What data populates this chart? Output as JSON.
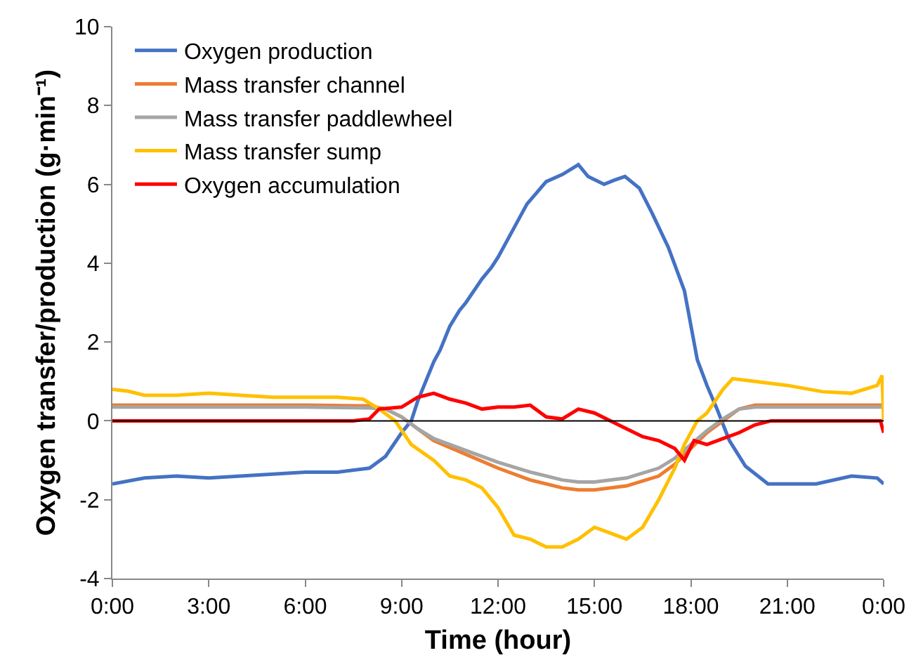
{
  "chart_data": {
    "type": "line",
    "xlabel": "Time (hour)",
    "ylabel": "Oxygen transfer/production (g·min⁻¹)",
    "xlim": [
      0,
      24
    ],
    "xticks": [
      {
        "value": 0,
        "label": "0:00"
      },
      {
        "value": 3,
        "label": "3:00"
      },
      {
        "value": 6,
        "label": "6:00"
      },
      {
        "value": 9,
        "label": "9:00"
      },
      {
        "value": 12,
        "label": "12:00"
      },
      {
        "value": 15,
        "label": "15:00"
      },
      {
        "value": 18,
        "label": "18:00"
      },
      {
        "value": 21,
        "label": "21:00"
      },
      {
        "value": 24,
        "label": "0:00"
      }
    ],
    "ylim": [
      -4,
      10
    ],
    "yticks": [
      -4,
      -2,
      0,
      2,
      4,
      6,
      8,
      10
    ],
    "grid": false,
    "legend": "top left",
    "marker": "none",
    "line_style": "solid",
    "ref_lines": [
      {
        "axis": "y",
        "value": 0,
        "color": "#000000"
      }
    ],
    "series": [
      {
        "name": "Oxygen production",
        "color": "#4472c4",
        "x": [
          0,
          1,
          2,
          3,
          4,
          5,
          6,
          7,
          8,
          8.5,
          9,
          9.3,
          9.5,
          10,
          10.2,
          10.5,
          10.8,
          11,
          11.5,
          11.8,
          12,
          12.5,
          12.9,
          13.5,
          14,
          14.5,
          14.8,
          15.3,
          15.6,
          15.95,
          16.4,
          16.8,
          17.3,
          17.8,
          18.2,
          18.5,
          18.8,
          19.2,
          19.7,
          20.4,
          21,
          21.9,
          23,
          23.8,
          24
        ],
        "values": [
          -1.6,
          -1.45,
          -1.4,
          -1.45,
          -1.4,
          -1.35,
          -1.3,
          -1.3,
          -1.2,
          -0.9,
          -0.3,
          0,
          0.5,
          1.5,
          1.8,
          2.4,
          2.8,
          3.0,
          3.6,
          3.9,
          4.15,
          4.9,
          5.5,
          6.07,
          6.25,
          6.5,
          6.2,
          6.0,
          6.1,
          6.2,
          5.9,
          5.26,
          4.4,
          3.3,
          1.55,
          0.9,
          0.33,
          -0.5,
          -1.15,
          -1.6,
          -1.6,
          -1.6,
          -1.4,
          -1.45,
          -1.6
        ]
      },
      {
        "name": "Mass transfer channel",
        "color": "#ed7d31",
        "x": [
          0,
          2,
          4,
          6,
          8,
          8.5,
          9,
          9.5,
          10,
          11,
          12,
          13,
          14,
          14.5,
          15,
          16,
          17,
          17.5,
          18,
          18.5,
          19,
          19.5,
          20,
          22,
          24
        ],
        "values": [
          0.4,
          0.4,
          0.4,
          0.4,
          0.38,
          0.3,
          0.1,
          -0.2,
          -0.5,
          -0.85,
          -1.2,
          -1.5,
          -1.7,
          -1.75,
          -1.75,
          -1.65,
          -1.4,
          -1.1,
          -0.7,
          -0.3,
          0.0,
          0.3,
          0.4,
          0.4,
          0.4
        ]
      },
      {
        "name": "Mass transfer paddlewheel",
        "color": "#a5a5a5",
        "x": [
          0,
          2,
          4,
          6,
          8,
          8.5,
          9,
          9.5,
          10,
          11,
          12,
          13,
          14,
          14.5,
          15,
          16,
          17,
          17.5,
          18,
          18.5,
          19,
          19.5,
          20,
          22,
          24
        ],
        "values": [
          0.35,
          0.35,
          0.35,
          0.35,
          0.33,
          0.3,
          0.1,
          -0.2,
          -0.45,
          -0.75,
          -1.05,
          -1.3,
          -1.5,
          -1.55,
          -1.55,
          -1.45,
          -1.2,
          -0.95,
          -0.6,
          -0.25,
          0.05,
          0.3,
          0.35,
          0.35,
          0.35
        ]
      },
      {
        "name": "Mass transfer sump",
        "color": "#ffc000",
        "x": [
          0,
          0.5,
          1,
          2,
          3,
          4,
          5,
          6,
          7,
          7.8,
          8.3,
          8.8,
          9.3,
          10,
          10.5,
          11,
          11.5,
          12,
          12.5,
          13,
          13.5,
          14,
          14.5,
          15,
          15.5,
          16,
          16.5,
          17,
          17.5,
          17.8,
          18.2,
          18.5,
          19,
          19.3,
          20,
          21,
          22.1,
          23,
          23.8,
          23.95,
          24
        ],
        "values": [
          0.8,
          0.75,
          0.65,
          0.65,
          0.7,
          0.65,
          0.6,
          0.6,
          0.6,
          0.55,
          0.3,
          0,
          -0.6,
          -1.0,
          -1.4,
          -1.5,
          -1.7,
          -2.2,
          -2.9,
          -3.0,
          -3.2,
          -3.2,
          -3.0,
          -2.7,
          -2.85,
          -3.0,
          -2.7,
          -2.0,
          -1.2,
          -0.6,
          0.0,
          0.2,
          0.8,
          1.07,
          1.0,
          0.9,
          0.74,
          0.7,
          0.9,
          1.15,
          0
        ]
      },
      {
        "name": "Oxygen accumulation",
        "color": "#ff0000",
        "x": [
          0,
          2,
          4,
          6,
          7.5,
          8,
          8.3,
          9,
          9.5,
          10,
          10.5,
          11,
          11.5,
          12,
          12.5,
          13,
          13.5,
          14,
          14.5,
          15,
          15.5,
          16,
          16.5,
          17,
          17.5,
          17.8,
          18.1,
          18.5,
          19,
          19.5,
          20,
          20.5,
          22,
          23.9,
          24
        ],
        "values": [
          0.0,
          0.0,
          0.0,
          0.0,
          0.0,
          0.05,
          0.3,
          0.35,
          0.6,
          0.7,
          0.55,
          0.45,
          0.3,
          0.35,
          0.35,
          0.4,
          0.1,
          0.05,
          0.3,
          0.2,
          0.0,
          -0.2,
          -0.4,
          -0.5,
          -0.7,
          -1.0,
          -0.5,
          -0.6,
          -0.45,
          -0.3,
          -0.1,
          0.0,
          0.0,
          0.0,
          -0.3
        ]
      }
    ]
  }
}
